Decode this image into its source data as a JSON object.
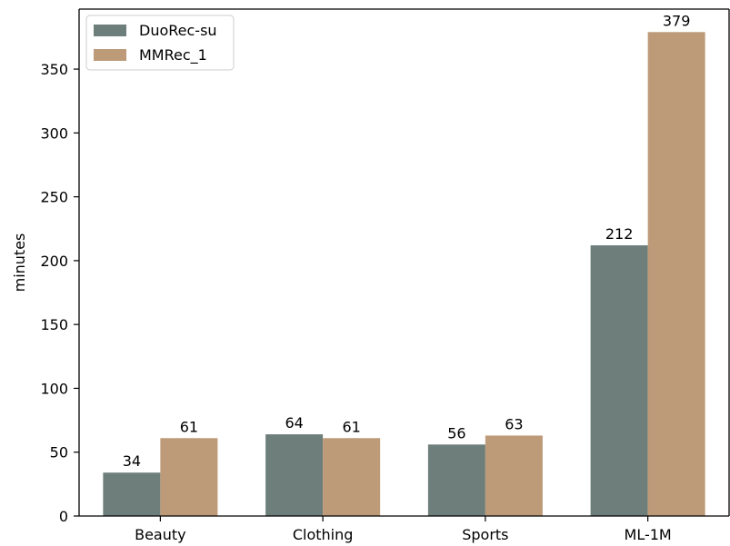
{
  "chart_data": {
    "type": "bar",
    "title": "",
    "xlabel": "",
    "ylabel": "minutes",
    "categories": [
      "Beauty",
      "Clothing",
      "Sports",
      "ML-1M"
    ],
    "series": [
      {
        "name": "DuoRec-su",
        "values": [
          34,
          64,
          56,
          212
        ],
        "color": "#6e7f7b"
      },
      {
        "name": "MMRec_1",
        "values": [
          61,
          61,
          63,
          379
        ],
        "color": "#bd9a78"
      }
    ],
    "ylim": [
      0,
      397
    ],
    "yticks": [
      0,
      50,
      100,
      150,
      200,
      250,
      300,
      350
    ],
    "grid": false,
    "legend": "top-left",
    "data_labels": true
  }
}
